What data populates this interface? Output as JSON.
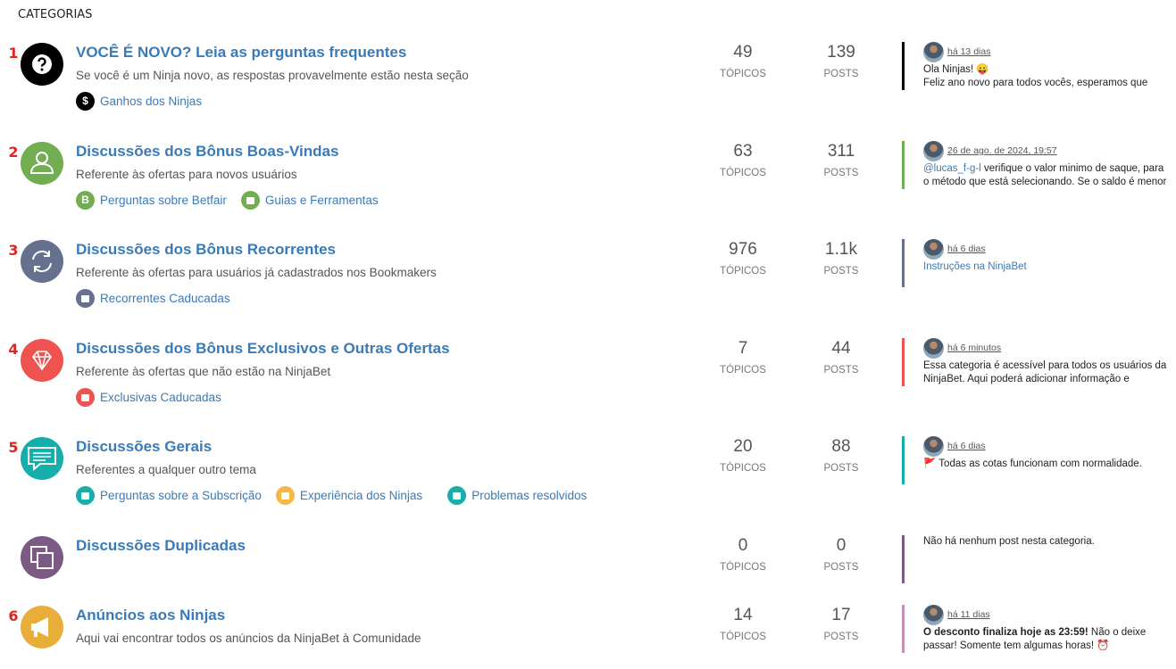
{
  "header": {
    "title": "CATEGORIAS"
  },
  "categories": [
    {
      "number": "1",
      "name": "VOCÊ É NOVO? Leia as perguntas frequentes",
      "description": "Se você é um Ninja novo, as respostas provavelmente estão nesta seção",
      "subcategories": [
        {
          "name": "Ganhos dos Ninjas",
          "icon": "$"
        }
      ],
      "topics": 49,
      "topics_label": "TÓPICOS",
      "posts": 139,
      "posts_label": "POSTS",
      "last_post": {
        "time": "há 13 dias",
        "lines": [
          "Ola Ninjas! 😛",
          "Feliz ano novo para todos vocês, esperamos que"
        ]
      }
    },
    {
      "number": "2",
      "name": "Discussões dos Bônus Boas-Vindas",
      "description": "Referente às ofertas para novos usuários",
      "subcategories": [
        {
          "name": "Perguntas sobre Betfair",
          "icon": "B"
        },
        {
          "name": "Guias e Ferramentas"
        }
      ],
      "topics": 63,
      "topics_label": "TÓPICOS",
      "posts": 311,
      "posts_label": "POSTS",
      "last_post": {
        "time": "26 de ago. de 2024, 19:57",
        "mention": "@lucas_f-g-l",
        "lines": [
          "verifique o valor minimo de saque, para",
          "o método que está selecionando. Se o saldo é menor"
        ]
      }
    },
    {
      "number": "3",
      "name": "Discussões dos Bônus Recorrentes",
      "description": "Referente às ofertas para usuários já cadastrados nos Bookmakers",
      "subcategories": [
        {
          "name": "Recorrentes Caducadas"
        }
      ],
      "topics": 976,
      "topics_label": "TÓPICOS",
      "posts": "1.1k",
      "posts_label": "POSTS",
      "last_post": {
        "time": "há 6 dias",
        "link": "Instruções na NinjaBet"
      }
    },
    {
      "number": "4",
      "name": "Discussões dos Bônus Exclusivos e Outras Ofertas",
      "description": "Referente às ofertas que não estão na NinjaBet",
      "subcategories": [
        {
          "name": "Exclusivas Caducadas"
        }
      ],
      "topics": 7,
      "topics_label": "TÓPICOS",
      "posts": 44,
      "posts_label": "POSTS",
      "last_post": {
        "time": "há 6 minutos",
        "lines": [
          "Essa categoria é acessível para todos os usuários da",
          "NinjaBet. Aqui poderá adicionar informação e"
        ]
      }
    },
    {
      "number": "5",
      "name": "Discussões Gerais",
      "description": "Referentes a qualquer outro tema",
      "subcategories": [
        {
          "name": "Perguntas sobre a Subscrição"
        },
        {
          "name": "Experiência dos Ninjas"
        },
        {
          "name": "Problemas resolvidos"
        }
      ],
      "topics": 20,
      "topics_label": "TÓPICOS",
      "posts": 88,
      "posts_label": "POSTS",
      "last_post": {
        "time": "há 6 dias",
        "lines": [
          "🚩 Todas as cotas funcionam com normalidade."
        ]
      }
    },
    {
      "name": "Discussões Duplicadas",
      "topics": 0,
      "topics_label": "TÓPICOS",
      "posts": 0,
      "posts_label": "POSTS",
      "last_post": {
        "lines": [
          "Não há nenhum post nesta categoria."
        ]
      }
    },
    {
      "number": "6",
      "name": "Anúncios aos Ninjas",
      "description": "Aqui vai encontrar todos os anúncios da NinjaBet à Comunidade",
      "topics": 14,
      "topics_label": "TÓPICOS",
      "posts": 17,
      "posts_label": "POSTS",
      "last_post": {
        "time": "há 11 dias",
        "bold": "O desconto finaliza hoje as 23:59!",
        "lines": [
          "Não o deixe",
          "passar! Somente tem algumas horas! ⏰"
        ]
      }
    }
  ]
}
